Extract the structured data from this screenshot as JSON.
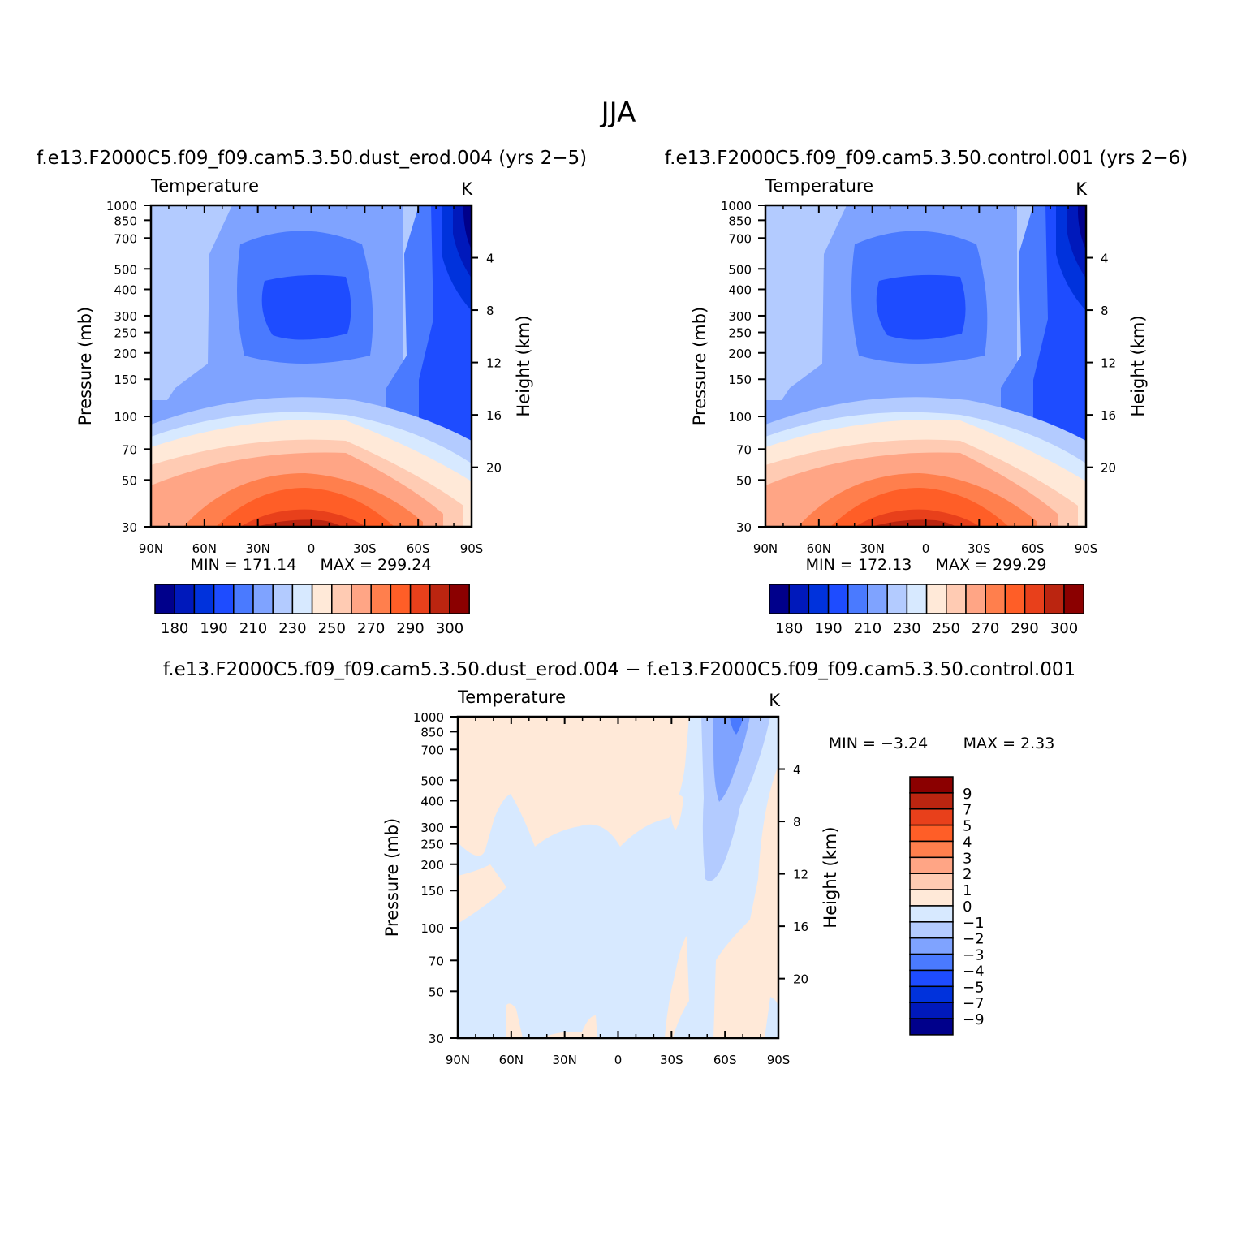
{
  "figure": {
    "season_title": "JJA",
    "diff_title": "f.e13.F2000C5.f09_f09.cam5.3.50.dust_erod.004 − f.e13.F2000C5.f09_f09.cam5.3.50.control.001",
    "colors": {
      "cold": [
        "#00008b",
        "#0019bb",
        "#0032dc",
        "#1e4cff",
        "#4a7aff",
        "#7fa3ff",
        "#b3cbff",
        "#d7e9ff"
      ],
      "warm": [
        "#ffe9d8",
        "#ffcbb3",
        "#ffa585",
        "#ff7f4d",
        "#ff5e27",
        "#e8401b",
        "#bb2510",
        "#8b0000"
      ]
    }
  },
  "chart_data": [
    {
      "type": "heatmap",
      "kind": "filled contour (zonal mean cross section)",
      "title": "f.e13.F2000C5.f09_f09.cam5.3.50.dust_erod.004 (yrs 2−5)",
      "variable": "Temperature",
      "units": "K",
      "xlabel": "",
      "ylabel": "Pressure (mb)",
      "y2label": "Height (km)",
      "x_ticks": [
        "90N",
        "60N",
        "30N",
        "0",
        "30S",
        "60S",
        "90S"
      ],
      "x_range": [
        90,
        -90
      ],
      "y_ticks": [
        30,
        50,
        70,
        100,
        150,
        200,
        250,
        300,
        400,
        500,
        700,
        850,
        1000
      ],
      "y_range_mb": [
        1000,
        30
      ],
      "y2_ticks": [
        4,
        8,
        12,
        16,
        20
      ],
      "min_label": "MIN = 171.14",
      "max_label": "MAX = 299.24",
      "min": 171.14,
      "max": 299.24,
      "colorbar_labels": [
        "180",
        "190",
        "210",
        "230",
        "250",
        "270",
        "290",
        "300"
      ],
      "contour_levels": [
        180,
        190,
        200,
        210,
        220,
        230,
        240,
        250,
        260,
        270,
        280,
        290,
        295,
        300,
        305
      ],
      "colorbar_labelled_every": 2
    },
    {
      "type": "heatmap",
      "kind": "filled contour (zonal mean cross section)",
      "title": "f.e13.F2000C5.f09_f09.cam5.3.50.control.001 (yrs 2−6)",
      "variable": "Temperature",
      "units": "K",
      "xlabel": "",
      "ylabel": "Pressure (mb)",
      "y2label": "Height (km)",
      "x_ticks": [
        "90N",
        "60N",
        "30N",
        "0",
        "30S",
        "60S",
        "90S"
      ],
      "x_range": [
        90,
        -90
      ],
      "y_ticks": [
        30,
        50,
        70,
        100,
        150,
        200,
        250,
        300,
        400,
        500,
        700,
        850,
        1000
      ],
      "y_range_mb": [
        1000,
        30
      ],
      "y2_ticks": [
        4,
        8,
        12,
        16,
        20
      ],
      "min_label": "MIN = 172.13",
      "max_label": "MAX = 299.29",
      "min": 172.13,
      "max": 299.29,
      "colorbar_labels": [
        "180",
        "190",
        "210",
        "230",
        "250",
        "270",
        "290",
        "300"
      ],
      "contour_levels": [
        180,
        190,
        200,
        210,
        220,
        230,
        240,
        250,
        260,
        270,
        280,
        290,
        295,
        300,
        305
      ],
      "colorbar_labelled_every": 2
    },
    {
      "type": "heatmap",
      "kind": "filled contour (difference)",
      "title": "",
      "variable": "Temperature",
      "units": "K",
      "xlabel": "",
      "ylabel": "Pressure (mb)",
      "y2label": "Height (km)",
      "x_ticks": [
        "90N",
        "60N",
        "30N",
        "0",
        "30S",
        "60S",
        "90S"
      ],
      "x_range": [
        90,
        -90
      ],
      "y_ticks": [
        30,
        50,
        70,
        100,
        150,
        200,
        250,
        300,
        400,
        500,
        700,
        850,
        1000
      ],
      "y_range_mb": [
        1000,
        30
      ],
      "y2_ticks": [
        4,
        8,
        12,
        16,
        20
      ],
      "min_label": "MIN = −3.24",
      "max_label": "MAX = 2.33",
      "min": -3.24,
      "max": 2.33,
      "colorbar_labels": [
        "9",
        "7",
        "5",
        "4",
        "3",
        "2",
        "1",
        "0",
        "−1",
        "−2",
        "−3",
        "−4",
        "−5",
        "−7",
        "−9"
      ],
      "contour_levels": [
        -9,
        -7,
        -5,
        -4,
        -3,
        -2,
        -1,
        0,
        1,
        2,
        3,
        4,
        5,
        7,
        9
      ]
    }
  ]
}
